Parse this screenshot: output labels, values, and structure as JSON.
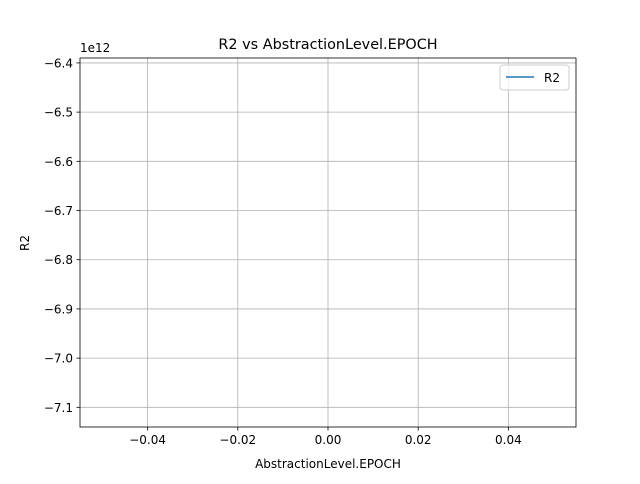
{
  "chart_data": {
    "type": "line",
    "title": "R2 vs AbstractionLevel.EPOCH",
    "xlabel": "AbstractionLevel.EPOCH",
    "ylabel": "R2",
    "y_offset_text": "1e12",
    "xlim": [
      -0.055,
      0.055
    ],
    "ylim": [
      -7.14,
      -6.39
    ],
    "x_ticks": [
      -0.04,
      -0.02,
      0.0,
      0.02,
      0.04
    ],
    "x_tick_labels": [
      "−0.04",
      "−0.02",
      "0.00",
      "0.02",
      "0.04"
    ],
    "y_ticks": [
      -6.4,
      -6.5,
      -6.6,
      -6.7,
      -6.8,
      -6.9,
      -7.0,
      -7.1
    ],
    "y_tick_labels": [
      "−6.4",
      "−6.5",
      "−6.6",
      "−6.7",
      "−6.8",
      "−6.9",
      "−7.0",
      "−7.1"
    ],
    "grid": true,
    "legend_position": "top-right",
    "series": [
      {
        "name": "R2",
        "color": "#1f77b4",
        "points": []
      }
    ]
  }
}
